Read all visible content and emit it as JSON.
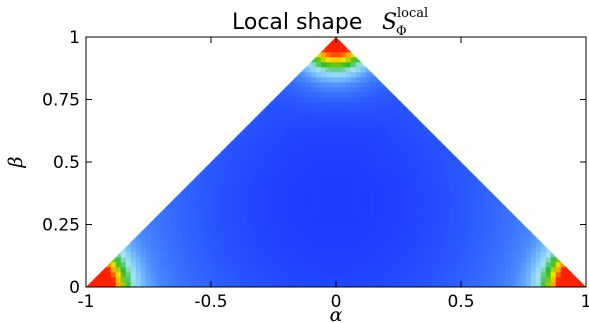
{
  "chart_data": {
    "type": "heatmap",
    "title": {
      "text": "Local shape",
      "math_symbol": "S",
      "math_subscript": "Φ",
      "math_superscript": "local"
    },
    "xlabel": "α",
    "ylabel": "β",
    "xlim": [
      -1,
      1
    ],
    "ylim": [
      0,
      1
    ],
    "domain": "triangle with vertices (-1, 0), (1, 0), (0, 1)",
    "x_ticks": [
      {
        "value": -1,
        "label": "-1"
      },
      {
        "value": -0.5,
        "label": "-0.5"
      },
      {
        "value": 0,
        "label": "0"
      },
      {
        "value": 0.5,
        "label": "0.5"
      },
      {
        "value": 1,
        "label": "1"
      }
    ],
    "y_ticks": [
      {
        "value": 0,
        "label": "0"
      },
      {
        "value": 0.25,
        "label": "0.25"
      },
      {
        "value": 0.5,
        "label": "0.5"
      },
      {
        "value": 0.75,
        "label": "0.75"
      },
      {
        "value": 1,
        "label": "1"
      }
    ],
    "colormap": [
      "#1e3cff",
      "#2c5cff",
      "#4c8cff",
      "#7cc4ff",
      "#a8e4f4",
      "#22bb22",
      "#ffe000",
      "#ff8000",
      "#ff2000"
    ],
    "field_minimum": {
      "x": 0,
      "y": 0.333
    },
    "grid": false,
    "legend": "none"
  }
}
